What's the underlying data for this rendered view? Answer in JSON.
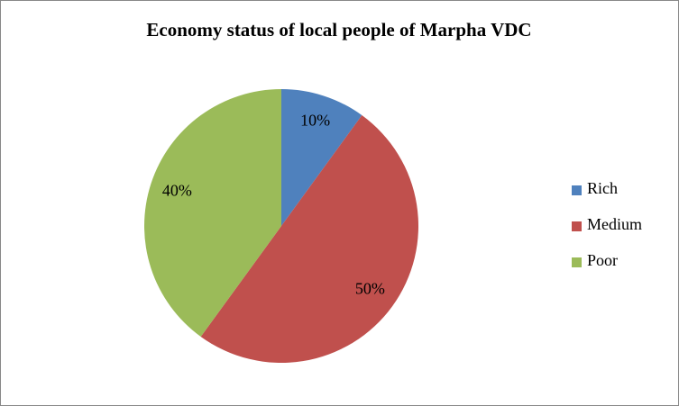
{
  "chart_data": {
    "type": "pie",
    "title": "Economy status of local people of Marpha VDC",
    "categories": [
      "Rich",
      "Medium",
      "Poor"
    ],
    "values": [
      10,
      50,
      40
    ],
    "value_labels": [
      "10%",
      "50%",
      "40%"
    ],
    "colors": [
      "#4f81bd",
      "#c0504d",
      "#9bbb59"
    ],
    "legend": "right"
  }
}
